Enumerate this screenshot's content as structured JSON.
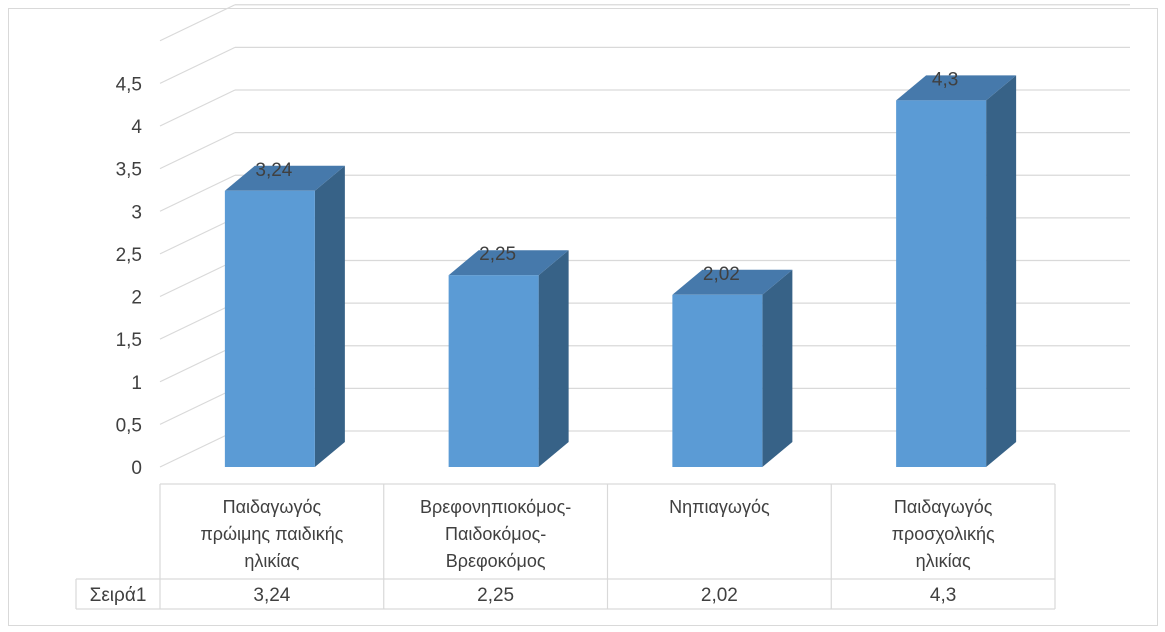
{
  "chart_data": {
    "type": "bar",
    "style": "3d-column",
    "categories": [
      [
        "Παιδαγωγός",
        "πρώιμης παιδικής",
        "ηλικίας"
      ],
      [
        "Βρεφονηπιοκόμος-",
        "Παιδοκόμος-",
        "Βρεφοκόμος"
      ],
      [
        "Νηπιαγωγός"
      ],
      [
        "Παιδαγωγός",
        "προσχολικής",
        "ηλικίας"
      ]
    ],
    "series": [
      {
        "name": "Σειρά1",
        "values": [
          3.24,
          2.25,
          2.02,
          4.3
        ],
        "labels": [
          "3,24",
          "2,25",
          "2,02",
          "4,3"
        ]
      }
    ],
    "ylim": [
      0,
      4.5
    ],
    "yticks": [
      "0",
      "0,5",
      "1",
      "1,5",
      "2",
      "2,5",
      "3",
      "3,5",
      "4",
      "4,5"
    ],
    "grid": true,
    "data_table": true,
    "colors": {
      "front": "#5b9bd5",
      "side": "#376287",
      "top": "#4679ab",
      "grid": "#d9d9d9",
      "text": "#404040"
    }
  }
}
